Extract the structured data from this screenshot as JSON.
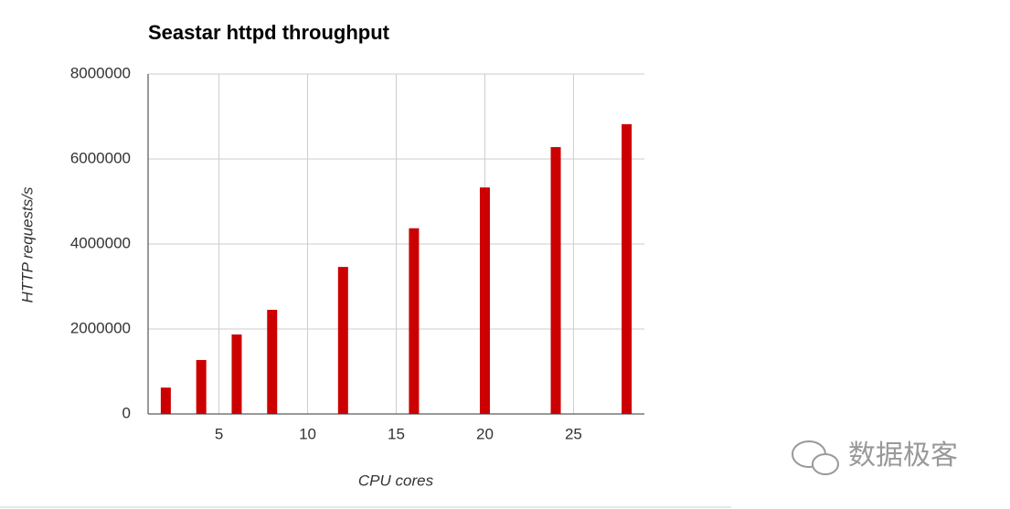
{
  "chart_data": {
    "type": "bar",
    "title": "Seastar httpd throughput",
    "x_label": "CPU cores",
    "y_label": "HTTP requests/s",
    "x": [
      2,
      4,
      6,
      8,
      12,
      16,
      20,
      24,
      28
    ],
    "values": [
      620000,
      1270000,
      1870000,
      2450000,
      3460000,
      4370000,
      5330000,
      6280000,
      6820000
    ],
    "color": "#cc0000",
    "xlim": [
      1,
      29
    ],
    "xticks": [
      5,
      10,
      15,
      20,
      25
    ],
    "ylim": [
      0,
      8000000
    ],
    "yticks": [
      0,
      2000000,
      4000000,
      6000000,
      8000000
    ],
    "grid": true
  },
  "watermark": "数据极客"
}
